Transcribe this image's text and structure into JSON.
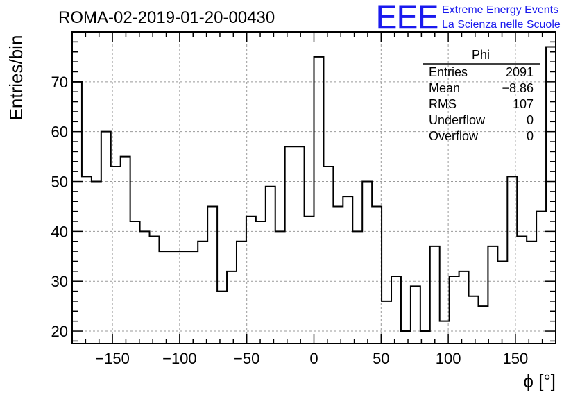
{
  "chart_data": {
    "type": "bar",
    "title": "ROMA-02-2019-01-20-00430",
    "xlabel": "ϕ [°]",
    "ylabel": "Entries/bin",
    "xlim": [
      -180,
      180
    ],
    "ylim": [
      17.5,
      80
    ],
    "bin_width": 7.2,
    "values": [
      70,
      51,
      50,
      60,
      53,
      55,
      42,
      40,
      39,
      36,
      36,
      36,
      36,
      38,
      45,
      28,
      32,
      38,
      43,
      42,
      49,
      40,
      57,
      57,
      43,
      75,
      53,
      45,
      47,
      40,
      50,
      45,
      26,
      31,
      20,
      29,
      20,
      37,
      22,
      31,
      32,
      27,
      25,
      37,
      34,
      51,
      39,
      38,
      44,
      77
    ],
    "x_ticks": [
      -150,
      -100,
      -50,
      0,
      50,
      100,
      150
    ],
    "x_tick_labels": [
      "−150",
      "−100",
      "−50",
      "0",
      "50",
      "100",
      "150"
    ],
    "y_ticks": [
      20,
      30,
      40,
      50,
      60,
      70
    ],
    "y_tick_labels": [
      "20",
      "30",
      "40",
      "50",
      "60",
      "70"
    ],
    "grid": true
  },
  "stats_box": {
    "title": "Phi",
    "rows": [
      {
        "label": "Entries",
        "value": "2091"
      },
      {
        "label": "Mean",
        "value": "−8.86"
      },
      {
        "label": "RMS",
        "value": "107"
      },
      {
        "label": "Underflow",
        "value": "0"
      },
      {
        "label": "Overflow",
        "value": "0"
      }
    ]
  },
  "logo": {
    "mark": "EEE",
    "line1": "Extreme Energy Events",
    "line2": "La Scienza nelle Scuole",
    "color": "#1a1aee"
  },
  "colors": {
    "line": "#000000",
    "grid": "#999999"
  }
}
